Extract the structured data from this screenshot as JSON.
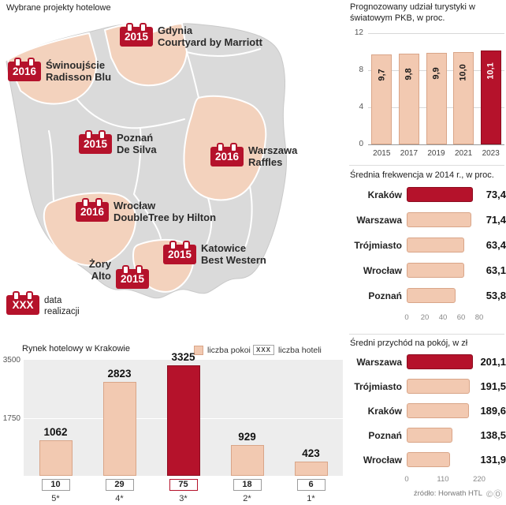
{
  "colors": {
    "accent": "#b5122b",
    "accent_dark": "#8c0c1f",
    "salmon": "#f2c9b1",
    "salmon_border": "#d9a588",
    "map_gray": "#dadada",
    "map_region": "#f3d2bd"
  },
  "map": {
    "title": "Wybrane projekty hotelowe",
    "projects": [
      {
        "year": "2016",
        "city": "Świnoujście",
        "hotel": "Radisson Blu"
      },
      {
        "year": "2015",
        "city": "Gdynia",
        "hotel": "Courtyard by Marriott"
      },
      {
        "year": "2015",
        "city": "Poznań",
        "hotel": "De Silva"
      },
      {
        "year": "2016",
        "city": "Warszawa",
        "hotel": "Raffles"
      },
      {
        "year": "2016",
        "city": "Wrocław",
        "hotel": "DoubleTree by Hilton"
      },
      {
        "year": "2015",
        "city": "Katowice",
        "hotel": "Best Western"
      },
      {
        "year": "2015",
        "city": "Żory",
        "hotel": "Alto"
      }
    ],
    "legend": {
      "symbol": "XXX",
      "label": "data realizacji"
    }
  },
  "chart_data": [
    {
      "type": "bar",
      "title": "Prognozowany udział turystyki w światowym PKB, w proc.",
      "categories": [
        "2015",
        "2017",
        "2019",
        "2021",
        "2023"
      ],
      "values": [
        9.7,
        9.8,
        9.9,
        10.0,
        10.1
      ],
      "value_labels": [
        "9,7",
        "9,8",
        "9,9",
        "10,0",
        "10,1"
      ],
      "ylim": [
        0,
        12
      ],
      "yticks": [
        0,
        4,
        8,
        12
      ],
      "highlight_index": 4,
      "grid": true,
      "legend_position": "none"
    },
    {
      "type": "bar-horizontal",
      "title": "Średnia frekwencja w 2014 r., w proc.",
      "categories": [
        "Kraków",
        "Warszawa",
        "Trójmiasto",
        "Wrocław",
        "Poznań"
      ],
      "values": [
        73.4,
        71.4,
        63.4,
        63.1,
        53.8
      ],
      "value_labels": [
        "73,4",
        "71,4",
        "63,4",
        "63,1",
        "53,8"
      ],
      "xlim": [
        0,
        80
      ],
      "xticks": [
        0,
        20,
        40,
        60,
        80
      ],
      "highlight_index": 0
    },
    {
      "type": "bar",
      "title": "Rynek hotelowy w Krakowie",
      "categories": [
        "5*",
        "4*",
        "3*",
        "2*",
        "1*"
      ],
      "series": [
        {
          "name": "liczba pokoi",
          "values": [
            1062,
            2823,
            3325,
            929,
            423
          ]
        },
        {
          "name": "liczba hoteli",
          "values": [
            10,
            29,
            75,
            18,
            6
          ]
        }
      ],
      "legend_symbol": "XXX",
      "ylim": [
        0,
        3500
      ],
      "yticks": [
        1750,
        3500
      ],
      "highlight_index": 2
    },
    {
      "type": "bar-horizontal",
      "title": "Średni przychód na pokój, w zł",
      "categories": [
        "Warszawa",
        "Trójmiasto",
        "Kraków",
        "Poznań",
        "Wrocław"
      ],
      "values": [
        201.1,
        191.5,
        189.6,
        138.5,
        131.9
      ],
      "value_labels": [
        "201,1",
        "191,5",
        "189,6",
        "138,5",
        "131,9"
      ],
      "xlim": [
        0,
        220
      ],
      "xticks": [
        0,
        110,
        220
      ],
      "highlight_index": 0
    }
  ],
  "footer": {
    "source": "źródło: Horwath HTL",
    "license_icons": "©Ⓞ"
  }
}
